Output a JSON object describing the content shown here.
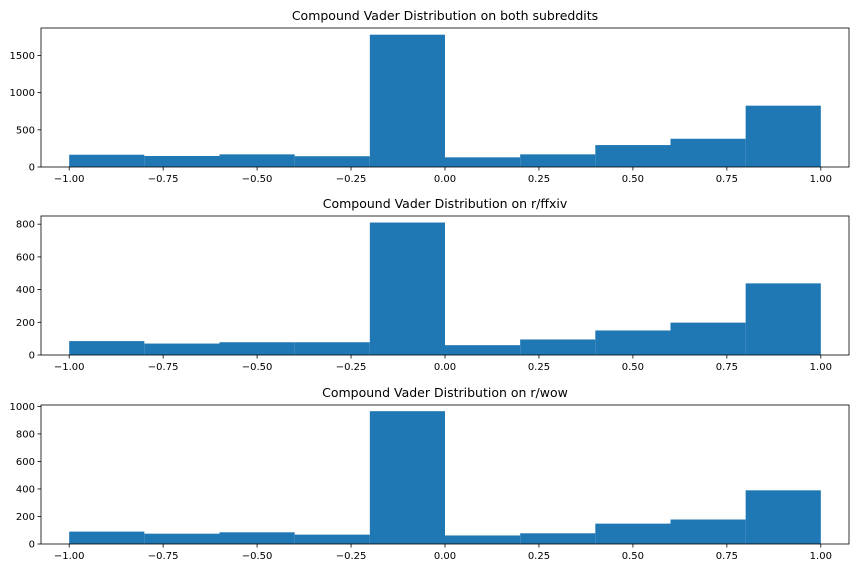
{
  "chart_data": [
    {
      "type": "bar",
      "title": "Compound Vader Distribution on both subreddits",
      "bin_edges": [
        -1.0,
        -0.8,
        -0.6,
        -0.4,
        -0.2,
        0.0,
        0.2,
        0.4,
        0.6,
        0.8,
        1.0
      ],
      "values": [
        165,
        148,
        170,
        145,
        1780,
        130,
        170,
        295,
        380,
        825
      ],
      "color": "#1f77b4",
      "xlim": [
        -1.075,
        1.075
      ],
      "ylim": [
        0,
        1870
      ],
      "xticks": [
        -1.0,
        -0.75,
        -0.5,
        -0.25,
        0.0,
        0.25,
        0.5,
        0.75,
        1.0
      ],
      "xtick_labels": [
        "−1.00",
        "−0.75",
        "−0.50",
        "−0.25",
        "0.00",
        "0.25",
        "0.50",
        "0.75",
        "1.00"
      ],
      "yticks": [
        0,
        500,
        1000,
        1500
      ],
      "ytick_labels": [
        "0",
        "500",
        "1000",
        "1500"
      ],
      "grid": false
    },
    {
      "type": "bar",
      "title": "Compound Vader Distribution on r/ffxiv",
      "bin_edges": [
        -1.0,
        -0.8,
        -0.6,
        -0.4,
        -0.2,
        0.0,
        0.2,
        0.4,
        0.6,
        0.8,
        1.0
      ],
      "values": [
        85,
        70,
        78,
        78,
        810,
        60,
        95,
        150,
        198,
        438
      ],
      "color": "#1f77b4",
      "xlim": [
        -1.075,
        1.075
      ],
      "ylim": [
        0,
        850
      ],
      "xticks": [
        -1.0,
        -0.75,
        -0.5,
        -0.25,
        0.0,
        0.25,
        0.5,
        0.75,
        1.0
      ],
      "xtick_labels": [
        "−1.00",
        "−0.75",
        "−0.50",
        "−0.25",
        "0.00",
        "0.25",
        "0.50",
        "0.75",
        "1.00"
      ],
      "yticks": [
        0,
        200,
        400,
        600,
        800
      ],
      "ytick_labels": [
        "0",
        "200",
        "400",
        "600",
        "800"
      ],
      "grid": false
    },
    {
      "type": "bar",
      "title": "Compound Vader Distribution on r/wow",
      "bin_edges": [
        -1.0,
        -0.8,
        -0.6,
        -0.4,
        -0.2,
        0.0,
        0.2,
        0.4,
        0.6,
        0.8,
        1.0
      ],
      "values": [
        90,
        75,
        85,
        68,
        965,
        62,
        78,
        148,
        178,
        390
      ],
      "color": "#1f77b4",
      "xlim": [
        -1.075,
        1.075
      ],
      "ylim": [
        0,
        1010
      ],
      "xticks": [
        -1.0,
        -0.75,
        -0.5,
        -0.25,
        0.0,
        0.25,
        0.5,
        0.75,
        1.0
      ],
      "xtick_labels": [
        "−1.00",
        "−0.75",
        "−0.50",
        "−0.25",
        "0.00",
        "0.25",
        "0.50",
        "0.75",
        "1.00"
      ],
      "yticks": [
        0,
        200,
        400,
        600,
        800,
        1000
      ],
      "ytick_labels": [
        "0",
        "200",
        "400",
        "600",
        "800",
        "1000"
      ],
      "grid": false
    }
  ]
}
